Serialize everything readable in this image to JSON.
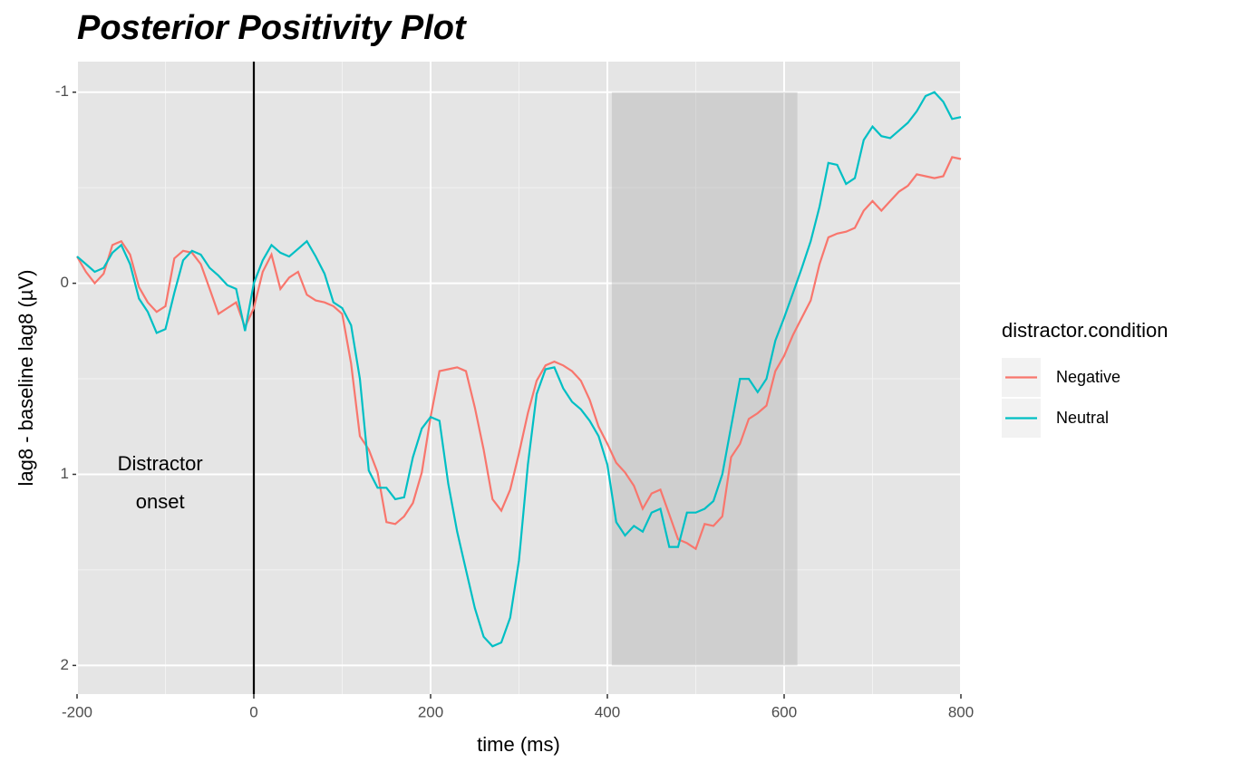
{
  "chart_data": {
    "type": "line",
    "title": "Posterior Positivity Plot",
    "x_label": "time (ms)",
    "y_label": "lag8 - baseline lag8 (µV)",
    "legend_title": "distractor.condition",
    "x": [
      -200,
      -190,
      -180,
      -170,
      -160,
      -150,
      -140,
      -130,
      -120,
      -110,
      -100,
      -90,
      -80,
      -70,
      -60,
      -50,
      -40,
      -30,
      -20,
      -10,
      0,
      10,
      20,
      30,
      40,
      50,
      60,
      70,
      80,
      90,
      100,
      110,
      120,
      130,
      140,
      150,
      160,
      170,
      180,
      190,
      200,
      210,
      220,
      230,
      240,
      250,
      260,
      270,
      280,
      290,
      300,
      310,
      320,
      330,
      340,
      350,
      360,
      370,
      380,
      390,
      400,
      410,
      420,
      430,
      440,
      450,
      460,
      470,
      480,
      490,
      500,
      510,
      520,
      530,
      540,
      550,
      560,
      570,
      580,
      590,
      600,
      610,
      620,
      630,
      640,
      650,
      660,
      670,
      680,
      690,
      700,
      710,
      720,
      730,
      740,
      750,
      760,
      770,
      780,
      790,
      800
    ],
    "series": [
      {
        "name": "Negative",
        "color": "#F8766D",
        "values": [
          -0.14,
          -0.06,
          0.0,
          -0.05,
          -0.2,
          -0.22,
          -0.15,
          0.02,
          0.1,
          0.15,
          0.12,
          -0.13,
          -0.17,
          -0.16,
          -0.1,
          0.03,
          0.16,
          0.13,
          0.1,
          0.23,
          0.13,
          -0.06,
          -0.15,
          0.03,
          -0.03,
          -0.06,
          0.06,
          0.09,
          0.1,
          0.12,
          0.16,
          0.42,
          0.8,
          0.87,
          0.99,
          1.25,
          1.26,
          1.22,
          1.15,
          0.99,
          0.7,
          0.46,
          0.45,
          0.44,
          0.46,
          0.65,
          0.87,
          1.13,
          1.19,
          1.08,
          0.89,
          0.68,
          0.51,
          0.43,
          0.41,
          0.43,
          0.46,
          0.51,
          0.61,
          0.75,
          0.84,
          0.94,
          0.99,
          1.06,
          1.18,
          1.1,
          1.08,
          1.21,
          1.34,
          1.36,
          1.39,
          1.26,
          1.27,
          1.22,
          0.91,
          0.84,
          0.71,
          0.68,
          0.64,
          0.46,
          0.38,
          0.27,
          0.18,
          0.09,
          -0.1,
          -0.24,
          -0.26,
          -0.27,
          -0.29,
          -0.38,
          -0.43,
          -0.38,
          -0.43,
          -0.48,
          -0.51,
          -0.57,
          -0.56,
          -0.55,
          -0.56,
          -0.66,
          -0.65
        ]
      },
      {
        "name": "Neutral",
        "color": "#00BFC4",
        "values": [
          -0.14,
          -0.1,
          -0.06,
          -0.08,
          -0.16,
          -0.2,
          -0.1,
          0.08,
          0.15,
          0.26,
          0.24,
          0.05,
          -0.12,
          -0.17,
          -0.15,
          -0.08,
          -0.04,
          0.01,
          0.03,
          0.25,
          0.0,
          -0.12,
          -0.2,
          -0.16,
          -0.14,
          -0.18,
          -0.22,
          -0.14,
          -0.05,
          0.1,
          0.13,
          0.22,
          0.5,
          0.98,
          1.07,
          1.07,
          1.13,
          1.12,
          0.91,
          0.76,
          0.7,
          0.72,
          1.05,
          1.3,
          1.5,
          1.7,
          1.85,
          1.9,
          1.88,
          1.75,
          1.45,
          0.95,
          0.58,
          0.45,
          0.44,
          0.55,
          0.62,
          0.66,
          0.72,
          0.8,
          0.95,
          1.25,
          1.32,
          1.27,
          1.3,
          1.2,
          1.18,
          1.38,
          1.38,
          1.2,
          1.2,
          1.18,
          1.14,
          1.0,
          0.75,
          0.5,
          0.5,
          0.57,
          0.5,
          0.3,
          0.18,
          0.05,
          -0.08,
          -0.22,
          -0.4,
          -0.63,
          -0.62,
          -0.52,
          -0.55,
          -0.75,
          -0.82,
          -0.77,
          -0.76,
          -0.8,
          -0.84,
          -0.9,
          -0.98,
          -1.0,
          -0.95,
          -0.86,
          -0.87
        ]
      }
    ],
    "xlim": [
      -200,
      800
    ],
    "xticks": [
      -200,
      0,
      200,
      400,
      600,
      800
    ],
    "ylim": [
      -1.16,
      2.15
    ],
    "yticks": [
      -1,
      0,
      1,
      2
    ],
    "y_reversed": true,
    "grid": true,
    "vline": 0,
    "highlight": {
      "x": [
        405,
        615
      ],
      "y": [
        -1,
        2
      ]
    },
    "annotation": {
      "text": [
        "Distractor",
        "onset"
      ],
      "x": -106,
      "y": 1.05
    }
  }
}
